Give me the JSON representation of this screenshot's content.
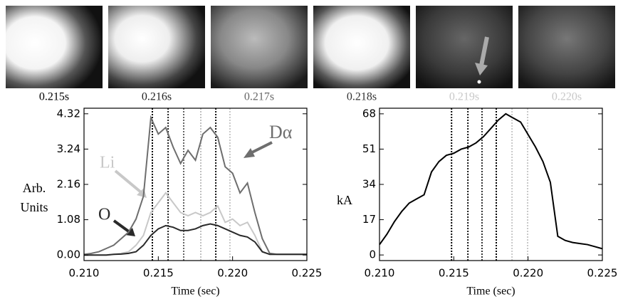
{
  "frames": [
    {
      "label": "0.215s",
      "color": "#000000"
    },
    {
      "label": "0.216s",
      "color": "#222222"
    },
    {
      "label": "0.217s",
      "color": "#666666"
    },
    {
      "label": "0.218s",
      "color": "#333333"
    },
    {
      "label": "0.219s",
      "color": "#c8c8c8"
    },
    {
      "label": "0.220s",
      "color": "#c8c8c8"
    }
  ],
  "chart_data": [
    {
      "type": "line",
      "x_label": "Time (sec)",
      "y_label": [
        "Arb.",
        "Units"
      ],
      "x": [
        0.21,
        0.2105,
        0.211,
        0.2115,
        0.212,
        0.2125,
        0.213,
        0.2135,
        0.214,
        0.2145,
        0.215,
        0.2155,
        0.216,
        0.2165,
        0.217,
        0.2175,
        0.218,
        0.2185,
        0.219,
        0.2195,
        0.22,
        0.2205,
        0.221,
        0.2215,
        0.222,
        0.2225,
        0.223,
        0.2235,
        0.224,
        0.2245,
        0.225
      ],
      "series": [
        {
          "name": "Dα",
          "color": "#6e6e6e",
          "values": [
            0.02,
            0.05,
            0.1,
            0.2,
            0.3,
            0.5,
            0.7,
            1.1,
            1.8,
            4.2,
            3.7,
            3.9,
            3.3,
            2.8,
            3.2,
            2.9,
            3.7,
            3.9,
            3.6,
            2.7,
            2.5,
            1.9,
            2.2,
            1.3,
            0.5,
            0.05,
            0.02,
            0.02,
            0.02,
            0.02,
            0.02
          ]
        },
        {
          "name": "Li",
          "color": "#c8c8c8",
          "values": [
            0,
            0,
            0,
            0,
            0.02,
            0.05,
            0.1,
            0.3,
            0.6,
            1.3,
            1.6,
            1.9,
            1.6,
            1.3,
            1.2,
            1.3,
            1.2,
            1.3,
            1.5,
            1.0,
            1.1,
            0.9,
            1.0,
            0.6,
            0.1,
            0.02,
            0.02,
            0.02,
            0.02,
            0.02,
            0.02
          ]
        },
        {
          "name": "O",
          "color": "#2a2a2a",
          "values": [
            0,
            0,
            0,
            0,
            0.02,
            0.03,
            0.05,
            0.1,
            0.3,
            0.6,
            0.8,
            0.9,
            0.85,
            0.75,
            0.75,
            0.8,
            0.9,
            0.95,
            0.9,
            0.8,
            0.7,
            0.6,
            0.55,
            0.4,
            0.1,
            0.02,
            0.02,
            0.02,
            0.02,
            0.02,
            0.02
          ]
        }
      ],
      "markers": [
        {
          "x": 0.2146,
          "color": "#000000"
        },
        {
          "x": 0.21566,
          "color": "#222222"
        },
        {
          "x": 0.21671,
          "color": "#666666"
        },
        {
          "x": 0.21786,
          "color": "#c0c0c0"
        },
        {
          "x": 0.21887,
          "color": "#111111"
        },
        {
          "x": 0.21982,
          "color": "#c8c8c8"
        }
      ],
      "xlim": [
        0.21,
        0.225
      ],
      "xticks": [
        {
          "value": 0.21,
          "label": "0.210"
        },
        {
          "value": 0.215,
          "label": "0.215"
        },
        {
          "value": 0.22,
          "label": "0.220"
        },
        {
          "value": 0.225,
          "label": "0.225"
        }
      ],
      "ylim": [
        -0.17,
        4.49
      ],
      "yticks": [
        {
          "value": 0,
          "label": "0.00"
        },
        1.08,
        2.16,
        3.24,
        4.32
      ]
    },
    {
      "type": "line",
      "x_label": "Time (sec)",
      "y_label": [
        "kA"
      ],
      "x": [
        0.21,
        0.2105,
        0.211,
        0.2115,
        0.212,
        0.2125,
        0.213,
        0.2135,
        0.214,
        0.2145,
        0.215,
        0.2155,
        0.216,
        0.2165,
        0.217,
        0.2175,
        0.218,
        0.2185,
        0.219,
        0.2195,
        0.22,
        0.2205,
        0.221,
        0.2215,
        0.222,
        0.2225,
        0.223,
        0.2235,
        0.224,
        0.2245,
        0.225
      ],
      "series": [
        {
          "color": "#000000",
          "values": [
            5,
            10,
            16,
            21,
            25,
            27,
            29,
            40,
            45,
            48,
            49,
            51,
            52,
            54,
            57,
            61,
            65,
            68,
            66,
            64,
            58,
            52,
            45,
            35,
            9,
            7,
            6,
            5.5,
            5,
            4,
            3
          ]
        }
      ],
      "markers": [
        {
          "x": 0.21485,
          "color": "#000000"
        },
        {
          "x": 0.21595,
          "color": "#111111"
        },
        {
          "x": 0.2169,
          "color": "#333333"
        },
        {
          "x": 0.21786,
          "color": "#000000"
        },
        {
          "x": 0.21892,
          "color": "#c8c8c8"
        },
        {
          "x": 0.21997,
          "color": "#c8c8c8"
        }
      ],
      "xlim": [
        0.21,
        0.225
      ],
      "xticks": [
        {
          "value": 0.21,
          "label": "0.210"
        },
        {
          "value": 0.215,
          "label": "0.215"
        },
        {
          "value": 0.22,
          "label": "0.220"
        },
        {
          "value": 0.225,
          "label": "0.225"
        }
      ],
      "ylim": [
        -2.7,
        70.7
      ],
      "yticks": [
        0,
        17,
        34,
        51,
        68
      ]
    }
  ]
}
